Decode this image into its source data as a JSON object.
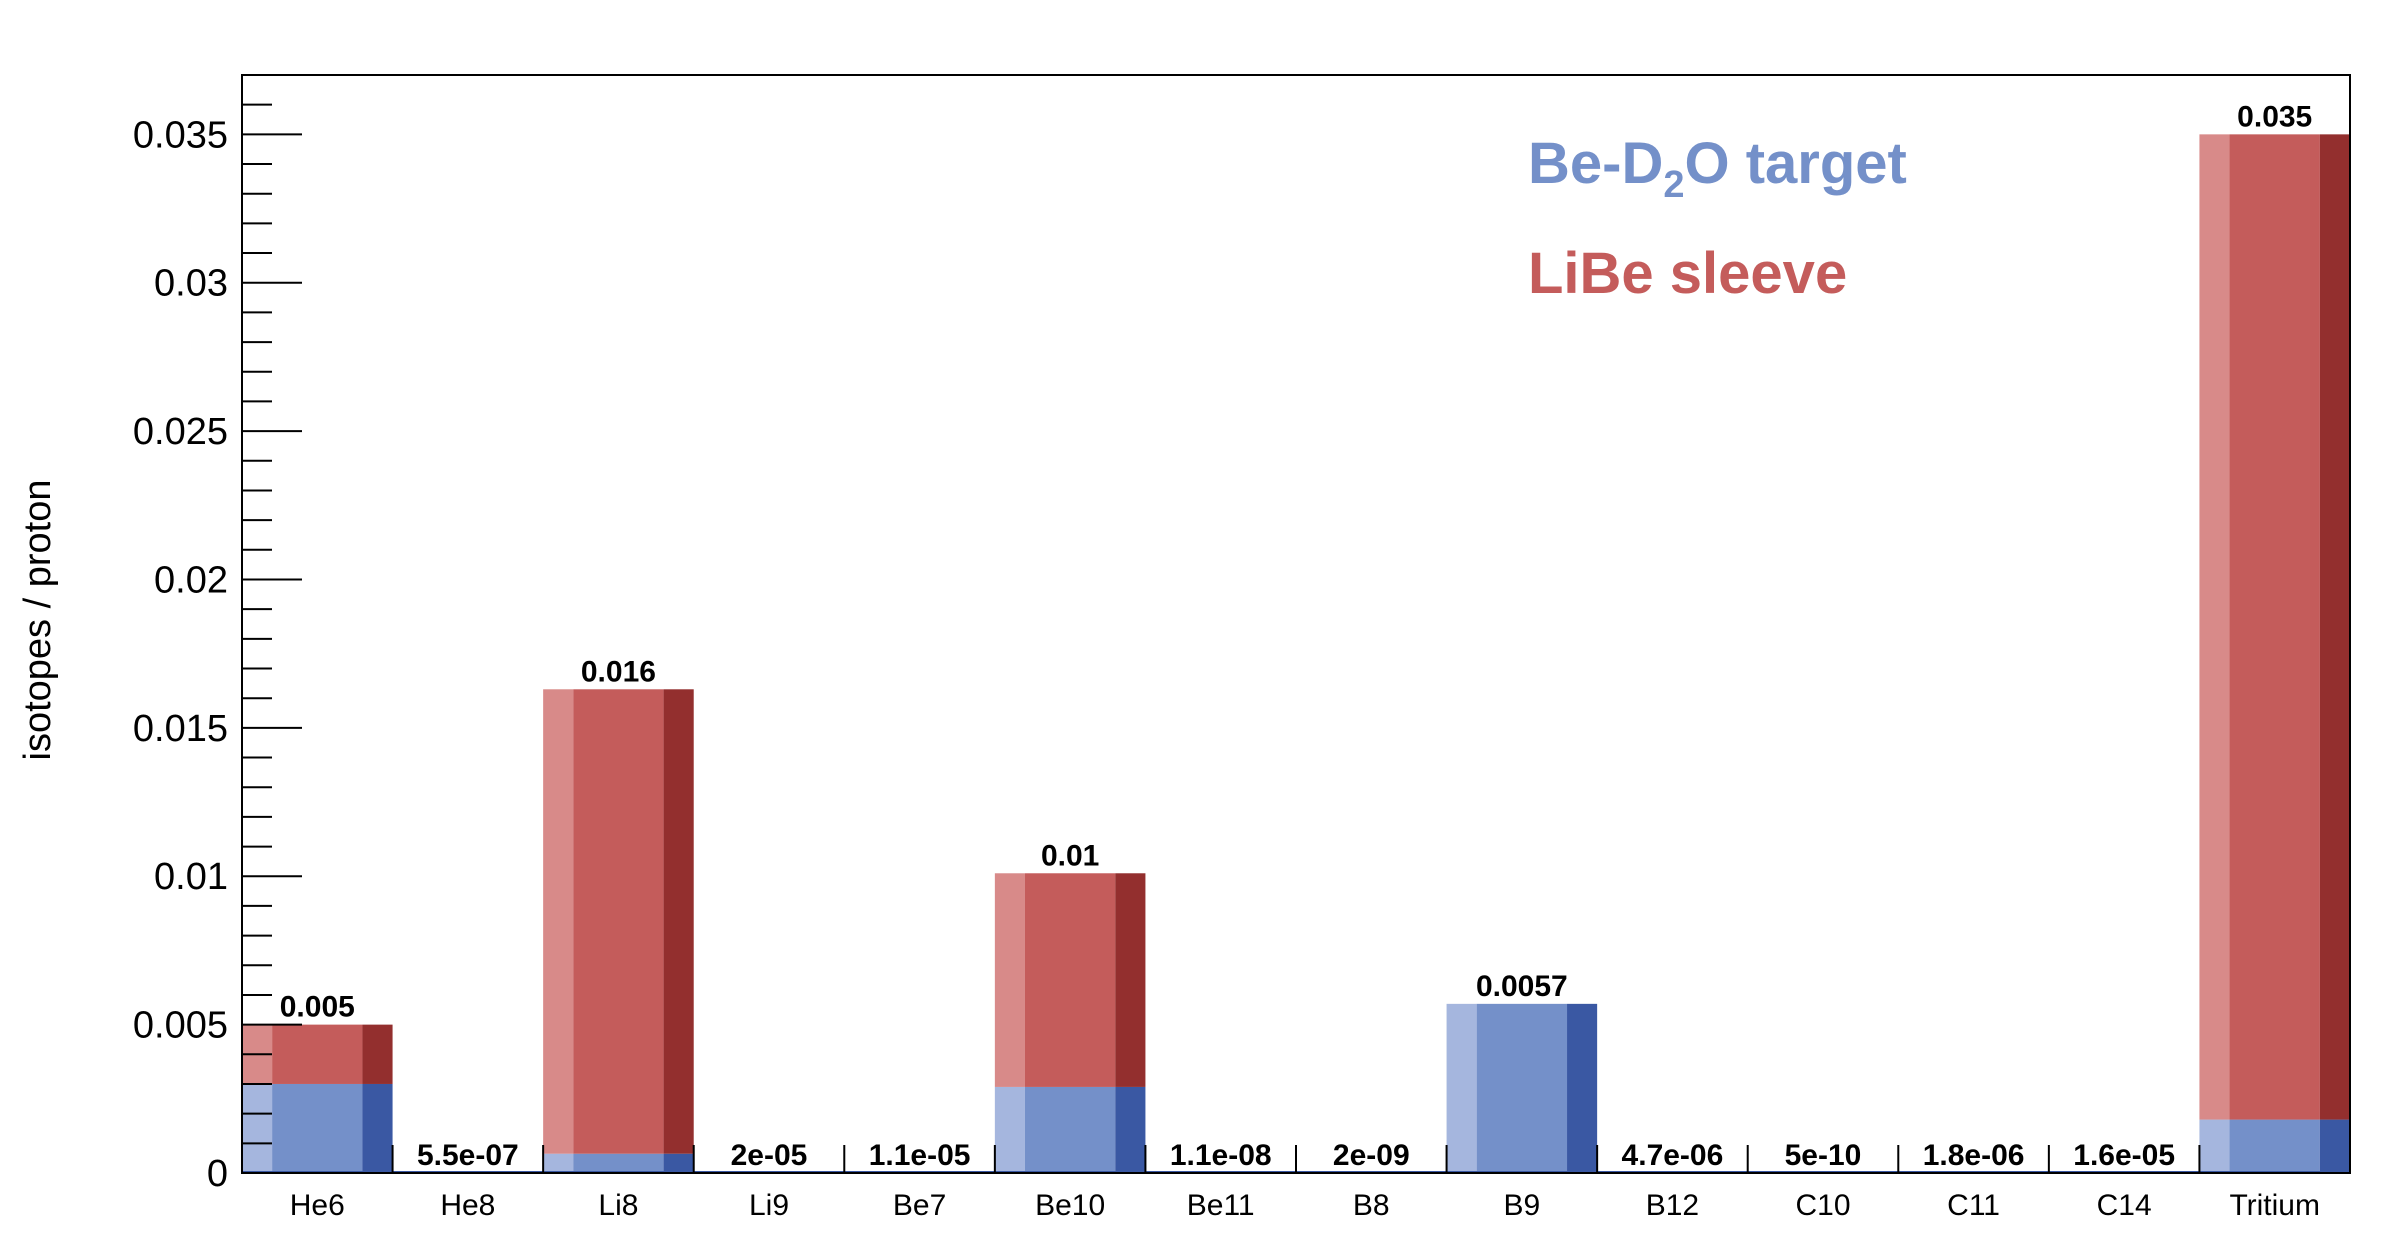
{
  "chart_data": {
    "type": "bar",
    "stacked": true,
    "ylabel": "isotopes / proton",
    "ylim": [
      0,
      0.037
    ],
    "yticks": [
      "0",
      "0.005",
      "0.01",
      "0.015",
      "0.02",
      "0.025",
      "0.03",
      "0.035"
    ],
    "ytick_values": [
      0,
      0.005,
      0.01,
      0.015,
      0.02,
      0.025,
      0.03,
      0.035
    ],
    "categories": [
      "He6",
      "He8",
      "Li8",
      "Li9",
      "Be7",
      "Be10",
      "Be11",
      "B8",
      "B9",
      "B12",
      "C10",
      "C11",
      "C14",
      "Tritium"
    ],
    "series": [
      {
        "name": "Be-D2O target",
        "label_parts": [
          "Be-D",
          "2",
          "O target"
        ],
        "color": "#7490c9",
        "color_light": "#a5b6de",
        "color_dark": "#3a58a3",
        "values": [
          0.003,
          0,
          0.00065,
          0,
          0,
          0.0029,
          0,
          0,
          0.0057,
          0,
          0,
          0,
          0,
          0.0018
        ]
      },
      {
        "name": "LiBe sleeve",
        "label_parts": [
          "LiBe sleeve"
        ],
        "color": "#c45c5b",
        "color_light": "#d88a89",
        "color_dark": "#932f2e",
        "values": [
          0.002,
          0,
          0.01565,
          0,
          0,
          0.0072,
          0,
          0,
          0,
          0,
          0,
          0,
          0,
          0.0332
        ]
      }
    ],
    "value_labels": [
      "0.005",
      "5.5e-07",
      "0.016",
      "2e-05",
      "1.1e-05",
      "0.01",
      "1.1e-08",
      "2e-09",
      "0.0057",
      "4.7e-06",
      "5e-10",
      "1.8e-06",
      "1.6e-05",
      "0.035"
    ],
    "legend_position": "top-right",
    "grid": false
  }
}
